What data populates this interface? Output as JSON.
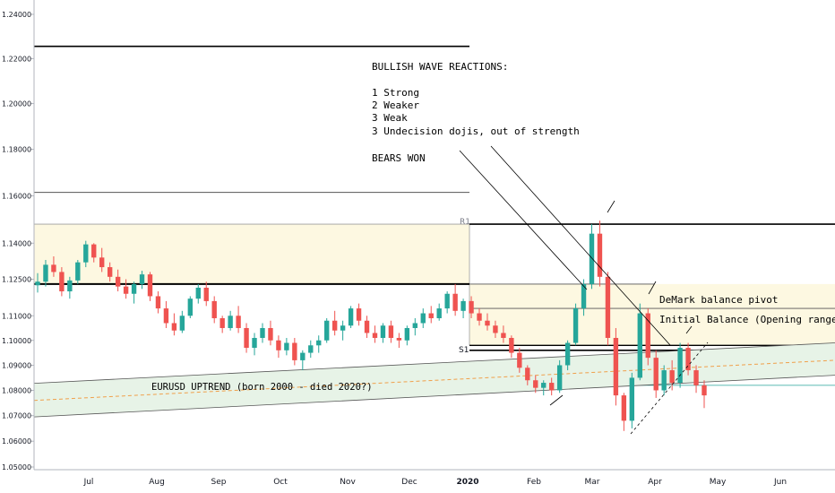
{
  "chart_data": {
    "type": "candlestick",
    "title": "",
    "y_axis": {
      "ticks": [
        "1.24000",
        "1.22000",
        "1.20000",
        "1.18000",
        "1.16000",
        "1.14000",
        "1.12500",
        "1.11000",
        "1.10000",
        "1.09000",
        "1.08000",
        "1.07000",
        "1.06000",
        "1.05000"
      ],
      "tick_values": [
        1.24,
        1.22,
        1.2,
        1.18,
        1.16,
        1.14,
        1.125,
        1.11,
        1.1,
        1.09,
        1.08,
        1.07,
        1.06,
        1.05
      ],
      "scale": "log",
      "position": "left"
    },
    "x_axis": {
      "ticks": [
        "Jul",
        "Aug",
        "Sep",
        "Oct",
        "Nov",
        "Dec",
        "2020",
        "Feb",
        "Mar",
        "Apr",
        "May",
        "Jun"
      ],
      "bold_tick": "2020"
    },
    "colors": {
      "up": "#26a69a",
      "down": "#ef5350",
      "zone": "#fdf8e1",
      "channel": "#e7f3e7"
    },
    "candles": [
      {
        "o": 1.1225,
        "h": 1.1275,
        "l": 1.1195,
        "c": 1.124
      },
      {
        "o": 1.124,
        "h": 1.133,
        "l": 1.122,
        "c": 1.131
      },
      {
        "o": 1.131,
        "h": 1.1345,
        "l": 1.126,
        "c": 1.128
      },
      {
        "o": 1.128,
        "h": 1.13,
        "l": 1.118,
        "c": 1.12
      },
      {
        "o": 1.12,
        "h": 1.126,
        "l": 1.117,
        "c": 1.1245
      },
      {
        "o": 1.1245,
        "h": 1.133,
        "l": 1.123,
        "c": 1.132
      },
      {
        "o": 1.132,
        "h": 1.141,
        "l": 1.13,
        "c": 1.1395
      },
      {
        "o": 1.1395,
        "h": 1.14,
        "l": 1.132,
        "c": 1.134
      },
      {
        "o": 1.134,
        "h": 1.138,
        "l": 1.128,
        "c": 1.13
      },
      {
        "o": 1.13,
        "h": 1.132,
        "l": 1.124,
        "c": 1.126
      },
      {
        "o": 1.126,
        "h": 1.129,
        "l": 1.12,
        "c": 1.122
      },
      {
        "o": 1.122,
        "h": 1.125,
        "l": 1.117,
        "c": 1.119
      },
      {
        "o": 1.119,
        "h": 1.124,
        "l": 1.115,
        "c": 1.123
      },
      {
        "o": 1.123,
        "h": 1.1285,
        "l": 1.121,
        "c": 1.127
      },
      {
        "o": 1.127,
        "h": 1.128,
        "l": 1.116,
        "c": 1.118
      },
      {
        "o": 1.118,
        "h": 1.12,
        "l": 1.111,
        "c": 1.113
      },
      {
        "o": 1.113,
        "h": 1.116,
        "l": 1.105,
        "c": 1.107
      },
      {
        "o": 1.107,
        "h": 1.111,
        "l": 1.102,
        "c": 1.104
      },
      {
        "o": 1.104,
        "h": 1.112,
        "l": 1.103,
        "c": 1.11
      },
      {
        "o": 1.11,
        "h": 1.118,
        "l": 1.109,
        "c": 1.117
      },
      {
        "o": 1.117,
        "h": 1.123,
        "l": 1.115,
        "c": 1.1215
      },
      {
        "o": 1.1215,
        "h": 1.124,
        "l": 1.114,
        "c": 1.116
      },
      {
        "o": 1.116,
        "h": 1.118,
        "l": 1.107,
        "c": 1.109
      },
      {
        "o": 1.109,
        "h": 1.11,
        "l": 1.103,
        "c": 1.105
      },
      {
        "o": 1.105,
        "h": 1.112,
        "l": 1.104,
        "c": 1.11
      },
      {
        "o": 1.11,
        "h": 1.114,
        "l": 1.103,
        "c": 1.105
      },
      {
        "o": 1.105,
        "h": 1.107,
        "l": 1.095,
        "c": 1.097
      },
      {
        "o": 1.097,
        "h": 1.103,
        "l": 1.094,
        "c": 1.101
      },
      {
        "o": 1.101,
        "h": 1.107,
        "l": 1.099,
        "c": 1.105
      },
      {
        "o": 1.105,
        "h": 1.108,
        "l": 1.098,
        "c": 1.1
      },
      {
        "o": 1.1,
        "h": 1.102,
        "l": 1.093,
        "c": 1.096
      },
      {
        "o": 1.096,
        "h": 1.101,
        "l": 1.094,
        "c": 1.099
      },
      {
        "o": 1.099,
        "h": 1.101,
        "l": 1.09,
        "c": 1.092
      },
      {
        "o": 1.092,
        "h": 1.096,
        "l": 1.088,
        "c": 1.095
      },
      {
        "o": 1.095,
        "h": 1.1,
        "l": 1.093,
        "c": 1.098
      },
      {
        "o": 1.098,
        "h": 1.102,
        "l": 1.095,
        "c": 1.1
      },
      {
        "o": 1.1,
        "h": 1.109,
        "l": 1.099,
        "c": 1.108
      },
      {
        "o": 1.108,
        "h": 1.112,
        "l": 1.102,
        "c": 1.104
      },
      {
        "o": 1.104,
        "h": 1.108,
        "l": 1.1,
        "c": 1.106
      },
      {
        "o": 1.106,
        "h": 1.114,
        "l": 1.105,
        "c": 1.113
      },
      {
        "o": 1.113,
        "h": 1.115,
        "l": 1.106,
        "c": 1.108
      },
      {
        "o": 1.108,
        "h": 1.11,
        "l": 1.101,
        "c": 1.103
      },
      {
        "o": 1.103,
        "h": 1.106,
        "l": 1.099,
        "c": 1.101
      },
      {
        "o": 1.101,
        "h": 1.107,
        "l": 1.099,
        "c": 1.106
      },
      {
        "o": 1.106,
        "h": 1.108,
        "l": 1.099,
        "c": 1.101
      },
      {
        "o": 1.101,
        "h": 1.103,
        "l": 1.097,
        "c": 1.1
      },
      {
        "o": 1.1,
        "h": 1.106,
        "l": 1.098,
        "c": 1.105
      },
      {
        "o": 1.105,
        "h": 1.109,
        "l": 1.102,
        "c": 1.107
      },
      {
        "o": 1.107,
        "h": 1.113,
        "l": 1.105,
        "c": 1.111
      },
      {
        "o": 1.111,
        "h": 1.114,
        "l": 1.107,
        "c": 1.109
      },
      {
        "o": 1.109,
        "h": 1.115,
        "l": 1.108,
        "c": 1.113
      },
      {
        "o": 1.113,
        "h": 1.12,
        "l": 1.111,
        "c": 1.119
      },
      {
        "o": 1.119,
        "h": 1.123,
        "l": 1.11,
        "c": 1.112
      },
      {
        "o": 1.112,
        "h": 1.117,
        "l": 1.109,
        "c": 1.116
      },
      {
        "o": 1.116,
        "h": 1.118,
        "l": 1.109,
        "c": 1.111
      },
      {
        "o": 1.111,
        "h": 1.113,
        "l": 1.106,
        "c": 1.108
      },
      {
        "o": 1.108,
        "h": 1.111,
        "l": 1.104,
        "c": 1.106
      },
      {
        "o": 1.106,
        "h": 1.108,
        "l": 1.101,
        "c": 1.103
      },
      {
        "o": 1.103,
        "h": 1.106,
        "l": 1.099,
        "c": 1.101
      },
      {
        "o": 1.101,
        "h": 1.102,
        "l": 1.093,
        "c": 1.095
      },
      {
        "o": 1.095,
        "h": 1.097,
        "l": 1.087,
        "c": 1.089
      },
      {
        "o": 1.089,
        "h": 1.09,
        "l": 1.082,
        "c": 1.084
      },
      {
        "o": 1.084,
        "h": 1.086,
        "l": 1.079,
        "c": 1.081
      },
      {
        "o": 1.081,
        "h": 1.084,
        "l": 1.078,
        "c": 1.083
      },
      {
        "o": 1.083,
        "h": 1.085,
        "l": 1.078,
        "c": 1.08
      },
      {
        "o": 1.08,
        "h": 1.092,
        "l": 1.079,
        "c": 1.09
      },
      {
        "o": 1.09,
        "h": 1.1,
        "l": 1.088,
        "c": 1.099
      },
      {
        "o": 1.099,
        "h": 1.115,
        "l": 1.098,
        "c": 1.113
      },
      {
        "o": 1.113,
        "h": 1.125,
        "l": 1.11,
        "c": 1.123
      },
      {
        "o": 1.123,
        "h": 1.148,
        "l": 1.121,
        "c": 1.144
      },
      {
        "o": 1.144,
        "h": 1.1495,
        "l": 1.122,
        "c": 1.126
      },
      {
        "o": 1.126,
        "h": 1.128,
        "l": 1.098,
        "c": 1.101
      },
      {
        "o": 1.101,
        "h": 1.105,
        "l": 1.074,
        "c": 1.078
      },
      {
        "o": 1.078,
        "h": 1.079,
        "l": 1.064,
        "c": 1.068
      },
      {
        "o": 1.068,
        "h": 1.087,
        "l": 1.065,
        "c": 1.085
      },
      {
        "o": 1.085,
        "h": 1.115,
        "l": 1.084,
        "c": 1.111
      },
      {
        "o": 1.111,
        "h": 1.113,
        "l": 1.09,
        "c": 1.093
      },
      {
        "o": 1.093,
        "h": 1.096,
        "l": 1.077,
        "c": 1.08
      },
      {
        "o": 1.08,
        "h": 1.09,
        "l": 1.078,
        "c": 1.088
      },
      {
        "o": 1.088,
        "h": 1.092,
        "l": 1.08,
        "c": 1.083
      },
      {
        "o": 1.083,
        "h": 1.099,
        "l": 1.081,
        "c": 1.097
      },
      {
        "o": 1.097,
        "h": 1.099,
        "l": 1.086,
        "c": 1.088
      },
      {
        "o": 1.088,
        "h": 1.09,
        "l": 1.079,
        "c": 1.082
      },
      {
        "o": 1.082,
        "h": 1.084,
        "l": 1.073,
        "c": 1.078
      }
    ],
    "levels": [
      {
        "label": "R1",
        "value": 1.148
      },
      {
        "label": "S1",
        "value": 1.0975
      }
    ],
    "annotations": {
      "wave_title": "BULLISH WAVE REACTIONS:",
      "wave_1": "1 Strong",
      "wave_2": "2 Weaker",
      "wave_3": "3 Weak",
      "wave_4": "3 Undecision dojis, out of strength",
      "bears": "BEARS WON",
      "demark": "DeMark balance pivot",
      "initial_balance": "Initial Balance (Opening range)",
      "uptrend": "EURUSD UPTREND (born 2000 - died 2020?)"
    },
    "grid": false,
    "legend": "none"
  }
}
